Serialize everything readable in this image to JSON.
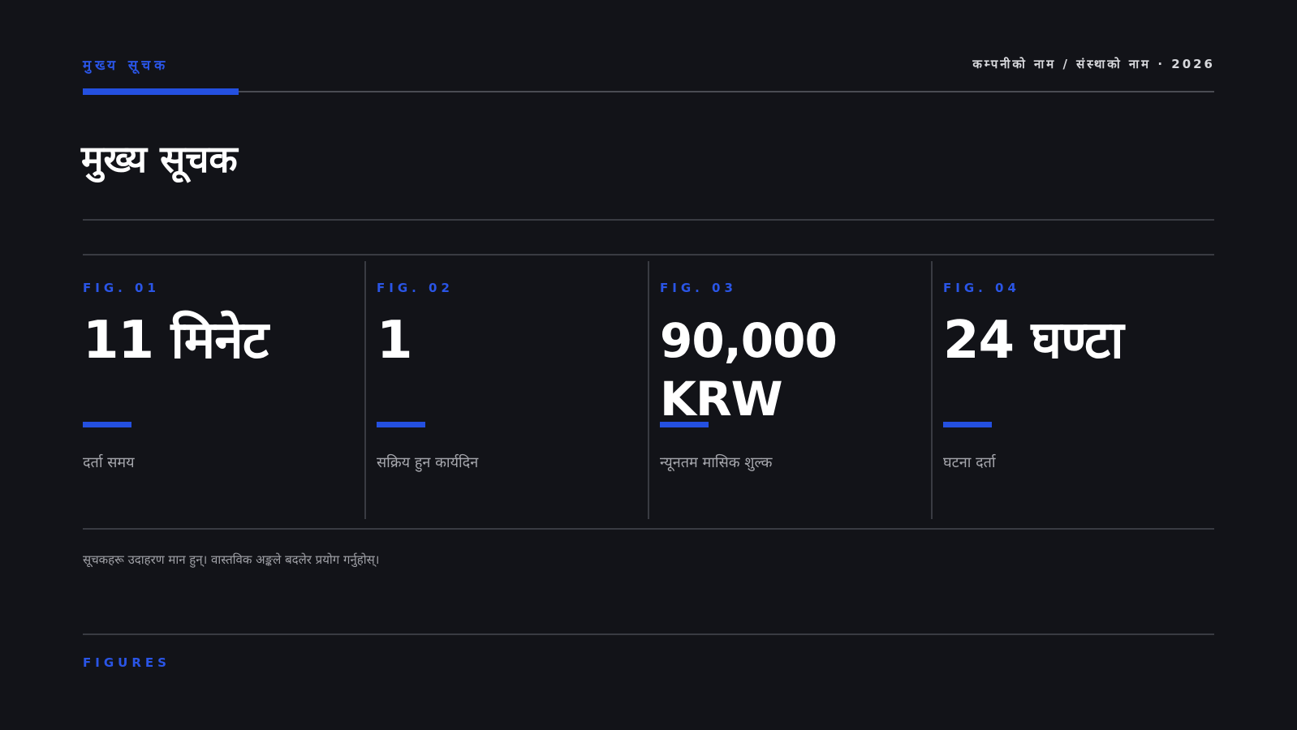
{
  "header": {
    "eyebrow": "मुख्य सूचक",
    "company": "कम्पनीको नाम / संस्थाको नाम · 2026"
  },
  "title": "मुख्य सूचक",
  "kpis": [
    {
      "fig": "FIG. 01",
      "value": "11 मिनेट",
      "label": "दर्ता समय"
    },
    {
      "fig": "FIG. 02",
      "value": "1",
      "label": "सक्रिय हुन कार्यदिन"
    },
    {
      "fig": "FIG. 03",
      "value": "90,000 KRW",
      "label": "न्यूनतम मासिक शुल्क"
    },
    {
      "fig": "FIG. 04",
      "value": "24 घण्टा",
      "label": "घटना दर्ता"
    }
  ],
  "footnote": "सूचकहरू उदाहरण मान हुन्। वास्तविक अङ्कले बदलेर प्रयोग गर्नुहोस्।",
  "footer": {
    "section_label": "FIGURES"
  },
  "colors": {
    "background": "#121318",
    "accent": "#2450e0",
    "text": "#ffffff",
    "muted": "#a6a7ad",
    "rule": "#393b42"
  }
}
